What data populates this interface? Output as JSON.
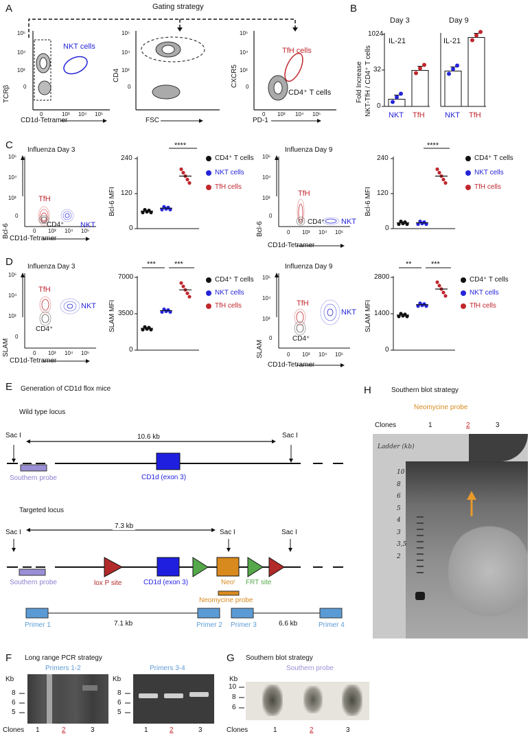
{
  "letters": {
    "a": "A",
    "b": "B",
    "c": "C",
    "d": "D",
    "e": "E",
    "f": "F",
    "g": "G",
    "h": "H"
  },
  "panel_a": {
    "title": "Gating strategy",
    "plot1": {
      "ylabel": "TCRβ",
      "xlabel": "CD1d-Tetramer",
      "gate_label": "NKT cells",
      "yticks": [
        "10⁵",
        "10⁴",
        "10³",
        "0"
      ],
      "xticks": [
        "0",
        "10³",
        "10⁴",
        "10⁵"
      ]
    },
    "plot2": {
      "ylabel": "CD4",
      "xlabel": "FSC",
      "yticks": [
        "10⁵",
        "10⁴",
        "10³",
        "0"
      ]
    },
    "plot3": {
      "ylabel": "CXCR5",
      "xlabel": "PD-1",
      "gate_label": "TfH cells",
      "pop_label": "CD4⁺ T cells",
      "yticks": [
        "10⁵",
        "10⁴",
        "10³",
        "0"
      ],
      "xticks": [
        "0",
        "10³",
        "10⁴",
        "10⁵"
      ]
    }
  },
  "panel_b": {
    "ylabel_line1": "Fold Increase",
    "ylabel_line2": "NKT-TfH / CD4⁺ T cells",
    "yticks": [
      "1024",
      "32",
      "0"
    ],
    "day3": {
      "title": "Day 3",
      "cytokine": "IL-21",
      "nkt": "NKT",
      "tfh": "TfH"
    },
    "day9": {
      "title": "Day 9",
      "cytokine": "IL-21",
      "nkt": "NKT",
      "tfh": "TfH"
    }
  },
  "panel_c": {
    "day3": {
      "title": "Influenza Day 3",
      "ylabel": "Bcl-6",
      "xlabel": "CD1d-Tetramer",
      "tfh": "TfH",
      "cd4": "CD4⁺",
      "nkt": "NKT",
      "yticks": [
        "10⁵",
        "10⁴",
        "10³",
        "0"
      ],
      "xticks": [
        "0",
        "10³",
        "10⁴",
        "10⁵"
      ]
    },
    "day9": {
      "title": "Influenza Day 9",
      "ylabel": "Bcl-6",
      "xlabel": "CD1d-Tetramer",
      "tfh": "TfH",
      "cd4": "CD4⁺",
      "nkt": "NKT",
      "yticks": [
        "10⁵",
        "10⁴",
        "10³",
        "0"
      ],
      "xticks": [
        "0",
        "10³",
        "10⁴",
        "10⁵"
      ]
    },
    "mfi3": {
      "ylabel": "Bcl-6 MFI",
      "yticks": [
        "240",
        "120",
        "0"
      ],
      "sig": "****"
    },
    "mfi9": {
      "ylabel": "Bcl-6 MFI",
      "yticks": [
        "240",
        "120",
        "0"
      ],
      "sig": "****"
    },
    "legend": [
      "CD4⁺ T cells",
      "NKT cells",
      "TfH cells"
    ]
  },
  "panel_d": {
    "day3": {
      "title": "Influenza Day 3",
      "ylabel": "SLAM",
      "xlabel": "CD1d-Tetramer",
      "tfh": "TfH",
      "cd4": "CD4⁺",
      "nkt": "NKT",
      "yticks": [
        "10⁵",
        "10⁴",
        "10³",
        "0"
      ],
      "xticks": [
        "0",
        "10³",
        "10⁴",
        "10⁵"
      ]
    },
    "day9": {
      "title": "Influenza Day 9",
      "ylabel": "SLAM",
      "xlabel": "CD1d-Tetramer",
      "tfh": "TfH",
      "cd4": "CD4⁺",
      "nkt": "NKT",
      "yticks": [
        "10⁵",
        "10⁴",
        "10³",
        "0"
      ],
      "xticks": [
        "0",
        "10³",
        "10⁴",
        "10⁵"
      ]
    },
    "mfi3": {
      "ylabel": "SLAM MFI",
      "yticks": [
        "7000",
        "3500",
        "0"
      ],
      "sig1": "***",
      "sig2": "***"
    },
    "mfi9": {
      "ylabel": "SLAM MFI",
      "yticks": [
        "2800",
        "1400",
        "0"
      ],
      "sig1": "**",
      "sig2": "***"
    },
    "legend": [
      "CD4⁺  T cells",
      "NKT cells",
      "TfH cells"
    ]
  },
  "panel_e": {
    "title": "Generation of CD1d  flox mice",
    "wt_title": "Wild type locus",
    "sac": "Sac I",
    "wt_dist": "10.6 kb",
    "southern": "Southern probe",
    "exon": "CD1d (exon 3)",
    "tg_title": "Targeted locus",
    "tg_dist": "7.3 kb",
    "loxp": "lox P site",
    "neo": "Neoʳ",
    "frt": "FRT site",
    "neo_probe": "Neomycine probe",
    "primers": [
      "Primer 1",
      "Primer 2",
      "Primer 3",
      "Primer 4"
    ],
    "pcr1": "7.1 kb",
    "pcr2": "6.6 kb"
  },
  "panel_f": {
    "title": "Long range PCR strategy",
    "gel1": "Primers 1-2",
    "gel2": "Primers 3-4",
    "kb": "Kb",
    "ladder": [
      "8",
      "6",
      "5"
    ],
    "clones_label": "Clones",
    "clones": [
      "1",
      "2",
      "3"
    ]
  },
  "panel_g": {
    "title": "Southern blot strategy",
    "probe": "Southern probe",
    "kb": "Kb",
    "ladder": [
      "10",
      "8",
      "6"
    ],
    "clones_label": "Clones",
    "clones": [
      "1",
      "2",
      "3"
    ]
  },
  "panel_h": {
    "title": "Southern blot strategy",
    "probe": "Neomycine probe",
    "clones_label": "Clones",
    "clones": [
      "1",
      "2",
      "3"
    ],
    "handwritten": "Ladder (kb)",
    "ladder": [
      "10",
      "8",
      "6",
      "5",
      "4",
      "3",
      "3,5",
      "2"
    ]
  },
  "chart_data": [
    {
      "type": "bar",
      "categories": [
        "NKT",
        "TfH"
      ],
      "series": [
        {
          "name": "",
          "values": [
            2,
            32
          ]
        }
      ],
      "title": "Day 3",
      "ylim": [
        0,
        1024
      ]
    },
    {
      "type": "bar",
      "categories": [
        "NKT",
        "TfH"
      ],
      "series": [
        {
          "name": "",
          "values": [
            30,
            760
          ]
        }
      ],
      "title": "Day 9",
      "ylim": [
        0,
        1024
      ]
    },
    {
      "type": "scatter",
      "categories": [
        "CD4⁺ T cells",
        "NKT cells",
        "TfH cells"
      ],
      "values": [
        60,
        70,
        180
      ],
      "ylabel": "Bcl-6 MFI",
      "ylim": [
        0,
        240
      ]
    },
    {
      "type": "scatter",
      "categories": [
        "CD4⁺ T cells",
        "NKT cells",
        "TfH cells"
      ],
      "values": [
        20,
        20,
        180
      ],
      "ylabel": "Bcl-6 MFI",
      "ylim": [
        0,
        240
      ]
    },
    {
      "type": "scatter",
      "categories": [
        "CD4⁺ T cells",
        "NKT cells",
        "TfH cells"
      ],
      "values": [
        2100,
        3800,
        5800
      ],
      "ylabel": "SLAM MFI",
      "ylim": [
        0,
        7000
      ]
    },
    {
      "type": "scatter",
      "categories": [
        "CD4⁺ T cells",
        "NKT cells",
        "TfH cells"
      ],
      "values": [
        1350,
        1750,
        2350
      ],
      "ylabel": "SLAM MFI",
      "ylim": [
        0,
        2800
      ]
    }
  ],
  "colors": {
    "nkt": "#2424d8",
    "tfh": "#c0272d",
    "cd4": "#111111",
    "neo": "#d98a1e",
    "probe": "#9a8fd6",
    "primer": "#5b9bd5",
    "lox": "#b22a2a",
    "frt": "#55a84a",
    "exon": "#1f1fe0"
  }
}
